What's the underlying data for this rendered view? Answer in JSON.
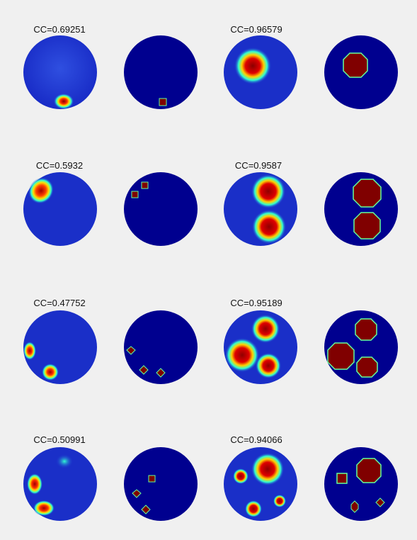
{
  "figure": {
    "rows": [
      {
        "left_cc": "CC=0.69251",
        "right_cc": "CC=0.96579"
      },
      {
        "left_cc": "CC=0.5932",
        "right_cc": "CC=0.9587"
      },
      {
        "left_cc": "CC=0.47752",
        "right_cc": "CC=0.95189"
      },
      {
        "left_cc": "CC=0.50991",
        "right_cc": "CC=0.94066"
      }
    ]
  },
  "colors": {
    "background": "#f0f0f0",
    "disc_blue": "#1a2fc8",
    "disc_dark": "#00008f",
    "inclusion_red": "#800000",
    "inclusion_edge": "#66ff99"
  }
}
